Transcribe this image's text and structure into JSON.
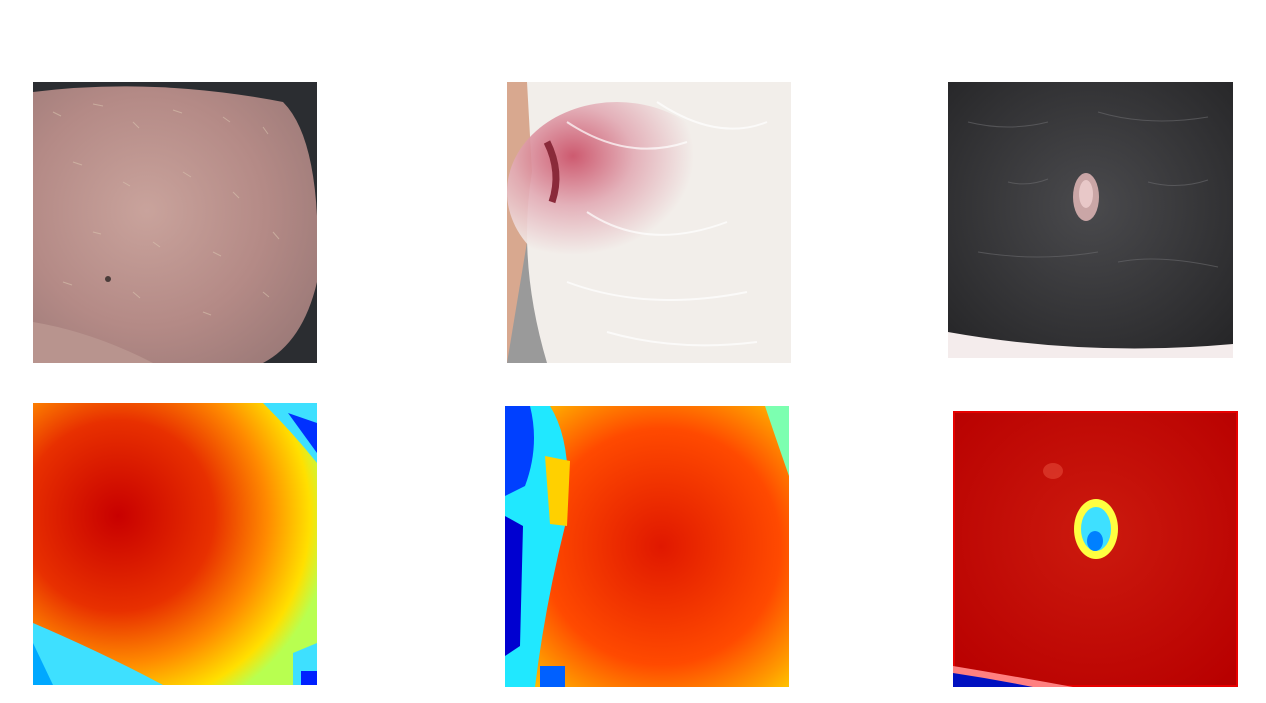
{
  "figure": {
    "photos": [
      {
        "subject": "pink-skin-with-sparse-pale-hair",
        "colors": [
          "#c9a39c",
          "#b48a86",
          "#d9c3b0"
        ]
      },
      {
        "subject": "white-fur-with-red-inflamed-skin",
        "colors": [
          "#f2eeea",
          "#c94a62",
          "#dcd6d0"
        ]
      },
      {
        "subject": "dark-fur-with-small-pale-lesion",
        "colors": [
          "#3a3a3c",
          "#2a2a2c",
          "#d8b0b0"
        ]
      }
    ],
    "heatmaps": [
      {
        "colormap": "jet",
        "colors": [
          "#c80000",
          "#ff6a00",
          "#ffe000",
          "#3ee0ff",
          "#0020ff"
        ]
      },
      {
        "colormap": "jet",
        "colors": [
          "#e01800",
          "#ff4a00",
          "#ffd000",
          "#20e8ff",
          "#0000d0"
        ]
      },
      {
        "colormap": "jet",
        "colors": [
          "#b80000",
          "#cc1a0e",
          "#ffff40",
          "#00a8ff",
          "#0010c0"
        ]
      }
    ]
  }
}
